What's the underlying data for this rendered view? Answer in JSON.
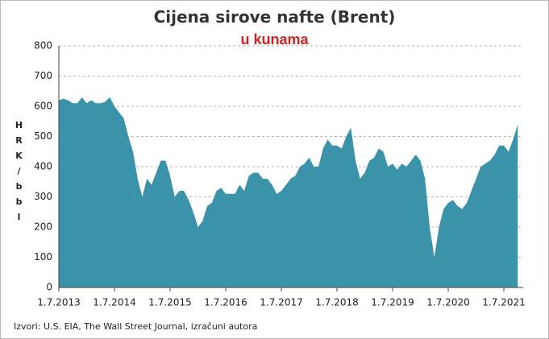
{
  "chart_data": {
    "type": "area",
    "title": "Cijena sirove nafte (Brent)",
    "subtitle": "u kunama",
    "ylabel": "HRK/bbl",
    "source": "Izvori: U.S. EIA, The Wall Street Journal, izračuni autora",
    "x": [
      "1.7.2013",
      "1.8.2013",
      "1.9.2013",
      "1.10.2013",
      "1.11.2013",
      "1.12.2013",
      "1.1.2014",
      "1.2.2014",
      "1.3.2014",
      "1.4.2014",
      "1.5.2014",
      "1.6.2014",
      "1.7.2014",
      "1.8.2014",
      "1.9.2014",
      "1.10.2014",
      "1.11.2014",
      "1.12.2014",
      "1.1.2015",
      "1.2.2015",
      "1.3.2015",
      "1.4.2015",
      "1.5.2015",
      "1.6.2015",
      "1.7.2015",
      "1.8.2015",
      "1.9.2015",
      "1.10.2015",
      "1.11.2015",
      "1.12.2015",
      "1.1.2016",
      "1.2.2016",
      "1.3.2016",
      "1.4.2016",
      "1.5.2016",
      "1.6.2016",
      "1.7.2016",
      "1.8.2016",
      "1.9.2016",
      "1.10.2016",
      "1.11.2016",
      "1.12.2016",
      "1.1.2017",
      "1.2.2017",
      "1.3.2017",
      "1.4.2017",
      "1.5.2017",
      "1.6.2017",
      "1.7.2017",
      "1.8.2017",
      "1.9.2017",
      "1.10.2017",
      "1.11.2017",
      "1.12.2017",
      "1.1.2018",
      "1.2.2018",
      "1.3.2018",
      "1.4.2018",
      "1.5.2018",
      "1.6.2018",
      "1.7.2018",
      "1.8.2018",
      "1.9.2018",
      "1.10.2018",
      "1.11.2018",
      "1.12.2018",
      "1.1.2019",
      "1.2.2019",
      "1.3.2019",
      "1.4.2019",
      "1.5.2019",
      "1.6.2019",
      "1.7.2019",
      "1.8.2019",
      "1.9.2019",
      "1.10.2019",
      "1.11.2019",
      "1.12.2019",
      "1.1.2020",
      "1.2.2020",
      "1.3.2020",
      "1.4.2020",
      "1.5.2020",
      "1.6.2020",
      "1.7.2020",
      "1.8.2020",
      "1.9.2020",
      "1.10.2020",
      "1.11.2020",
      "1.12.2020",
      "1.1.2021",
      "1.2.2021",
      "1.3.2021",
      "1.4.2021",
      "1.5.2021",
      "1.6.2021",
      "1.7.2021",
      "1.8.2021",
      "1.9.2021",
      "1.10.2021"
    ],
    "series": [
      {
        "name": "Brent",
        "color": "#3b93a9",
        "values": [
          620,
          625,
          620,
          610,
          610,
          630,
          610,
          620,
          610,
          610,
          615,
          630,
          600,
          580,
          560,
          500,
          450,
          360,
          300,
          360,
          340,
          380,
          420,
          420,
          370,
          300,
          320,
          320,
          290,
          250,
          200,
          220,
          270,
          280,
          320,
          330,
          310,
          310,
          310,
          340,
          320,
          370,
          380,
          380,
          360,
          360,
          340,
          310,
          320,
          340,
          360,
          370,
          400,
          410,
          430,
          400,
          400,
          460,
          490,
          470,
          470,
          460,
          500,
          530,
          420,
          360,
          380,
          420,
          430,
          460,
          450,
          400,
          410,
          390,
          410,
          400,
          420,
          440,
          420,
          360,
          200,
          100,
          200,
          260,
          280,
          290,
          270,
          260,
          280,
          320,
          360,
          400,
          410,
          420,
          440,
          470,
          470,
          450,
          490,
          540
        ]
      }
    ],
    "ylim": [
      0,
      800
    ],
    "yticks": [
      0,
      100,
      200,
      300,
      400,
      500,
      600,
      700,
      800
    ],
    "grid": true
  }
}
